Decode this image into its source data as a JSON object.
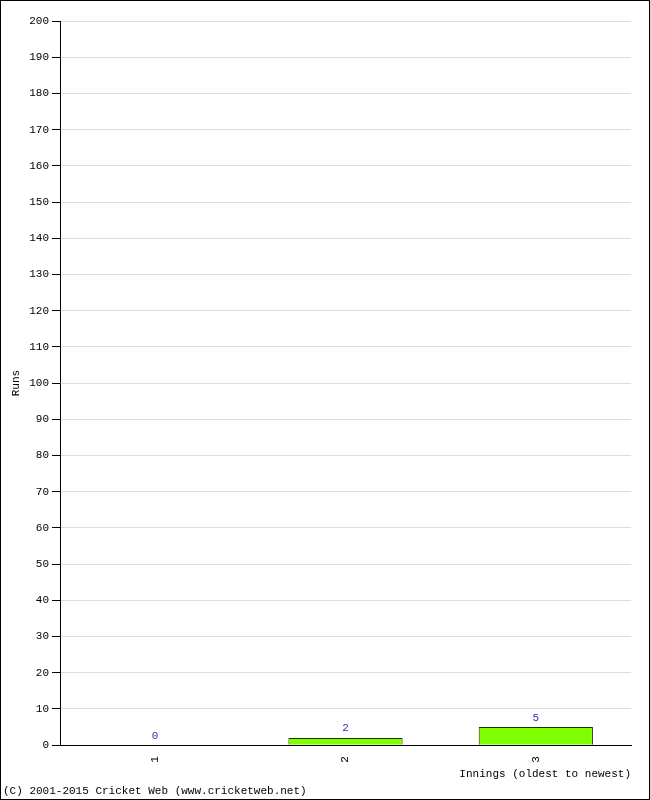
{
  "chart_data": {
    "type": "bar",
    "x_label": "Innings (oldest to newest)",
    "y_label": "Runs",
    "categories": [
      "1",
      "2",
      "3"
    ],
    "values": [
      0,
      2,
      5
    ],
    "color": "#80ff00",
    "ylim": [
      0,
      200
    ],
    "yticks": [
      0,
      10,
      20,
      30,
      40,
      50,
      60,
      70,
      80,
      90,
      100,
      110,
      120,
      130,
      140,
      150,
      160,
      170,
      180,
      190,
      200
    ],
    "grid": true,
    "data_labels": true,
    "annotations": [
      "(C) 2001-2015 Cricket Web (www.cricketweb.net)"
    ]
  }
}
